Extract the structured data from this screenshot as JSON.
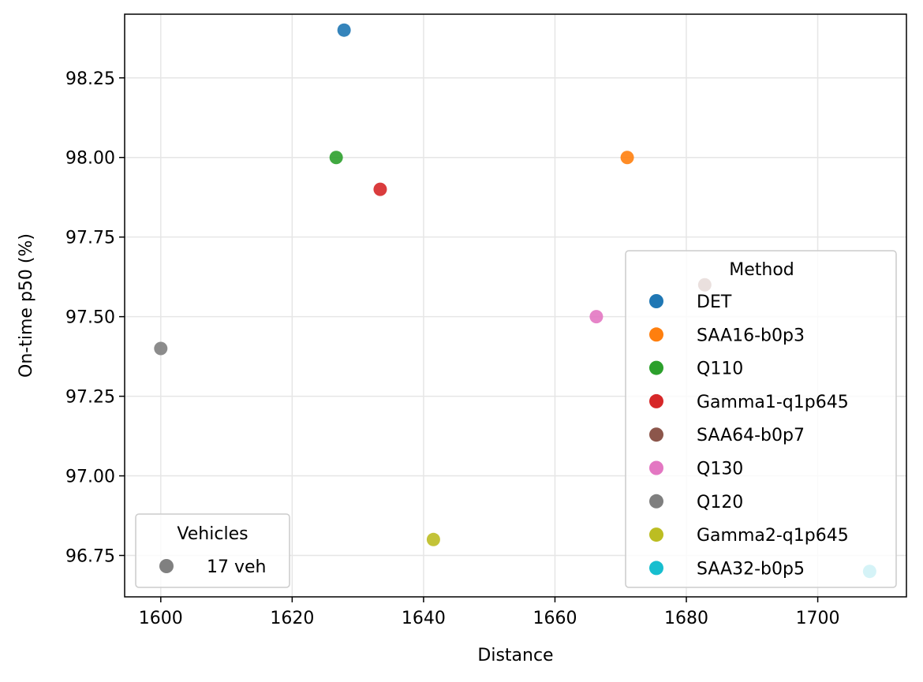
{
  "chart_data": {
    "type": "scatter",
    "title": "",
    "xlabel": "Distance",
    "ylabel": "On-time p50 (%)",
    "xlim": [
      1594.5,
      1713.5
    ],
    "ylim": [
      96.62,
      98.45
    ],
    "x_ticks": [
      1600,
      1620,
      1640,
      1660,
      1680,
      1700
    ],
    "x_tick_labels": [
      "1600",
      "1620",
      "1640",
      "1660",
      "1680",
      "1700"
    ],
    "y_ticks": [
      96.75,
      97.0,
      97.25,
      97.5,
      97.75,
      98.0,
      98.25
    ],
    "y_tick_labels": [
      "96.75",
      "97.00",
      "97.25",
      "97.50",
      "97.75",
      "98.00",
      "98.25"
    ],
    "grid": true,
    "series": [
      {
        "name": "DET",
        "color": "#1f77b4",
        "x": 1627.9,
        "y": 98.4
      },
      {
        "name": "SAA16-b0p3",
        "color": "#ff7f0e",
        "x": 1671.0,
        "y": 98.0
      },
      {
        "name": "Q110",
        "color": "#2ca02c",
        "x": 1626.7,
        "y": 98.0
      },
      {
        "name": "Gamma1-q1p645",
        "color": "#d62728",
        "x": 1633.4,
        "y": 97.9
      },
      {
        "name": "SAA64-b0p7",
        "color": "#8c564b",
        "x": 1682.8,
        "y": 97.6
      },
      {
        "name": "Q130",
        "color": "#e377c2",
        "x": 1666.3,
        "y": 97.5
      },
      {
        "name": "Q120",
        "color": "#7f7f7f",
        "x": 1600.0,
        "y": 97.4
      },
      {
        "name": "Gamma2-q1p645",
        "color": "#bcbd22",
        "x": 1641.5,
        "y": 96.8
      },
      {
        "name": "SAA32-b0p5",
        "color": "#17becf",
        "x": 1707.9,
        "y": 96.7
      }
    ],
    "legend_method": {
      "title": "Method",
      "placement": "lower-right",
      "entries": [
        "DET",
        "SAA16-b0p3",
        "Q110",
        "Gamma1-q1p645",
        "SAA64-b0p7",
        "Q130",
        "Q120",
        "Gamma2-q1p645",
        "SAA32-b0p5"
      ]
    },
    "legend_vehicles": {
      "title": "Vehicles",
      "placement": "lower-left",
      "entries": [
        {
          "label": "17 veh",
          "color": "#808080"
        }
      ]
    }
  }
}
